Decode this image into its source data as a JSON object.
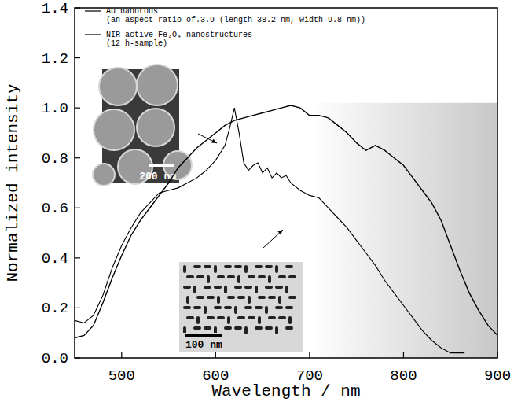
{
  "chart_data": {
    "type": "line",
    "x_label": "Wavelength / nm",
    "y_label": "Normalized intensity",
    "xlim": [
      450,
      900
    ],
    "xticks": [
      500,
      600,
      700,
      800,
      900
    ],
    "ylim": [
      0,
      1.4
    ],
    "yticks": [
      {
        "value": 0,
        "label": "0.0"
      },
      {
        "value": 0.2,
        "label": "0.2"
      },
      {
        "value": 0.4,
        "label": "0.4"
      },
      {
        "value": 0.6,
        "label": "0.6"
      },
      {
        "value": 0.8,
        "label": "0.8"
      },
      {
        "value": 1.0,
        "label": "1.0"
      },
      {
        "value": 1.2,
        "label": "1.2"
      },
      {
        "value": 1.4,
        "label": "1.4"
      }
    ],
    "grid": false,
    "legend": "top-left",
    "shaded_x": [
      700,
      900
    ],
    "shaded_top": 1.02,
    "insets": [
      {
        "scale_label": "200 nm"
      },
      {
        "scale_label": "100 nm"
      }
    ],
    "series": [
      {
        "name": "Au nanorods\n(an aspect ratio of.3.9 (length 38.2 nm, width 9.8 nm))",
        "color": "#000000",
        "line_style": "solid",
        "x": [
          450,
          460,
          470,
          480,
          490,
          500,
          510,
          520,
          530,
          540,
          550,
          560,
          570,
          580,
          590,
          600,
          610,
          615,
          620,
          625,
          630,
          635,
          640,
          645,
          650,
          655,
          660,
          665,
          670,
          675,
          680,
          690,
          700,
          710,
          720,
          730,
          740,
          750,
          760,
          770,
          780,
          790,
          800,
          810,
          820,
          830,
          840,
          850,
          860,
          865
        ],
        "values": [
          0.15,
          0.14,
          0.17,
          0.25,
          0.36,
          0.45,
          0.52,
          0.58,
          0.62,
          0.66,
          0.67,
          0.68,
          0.7,
          0.72,
          0.75,
          0.79,
          0.85,
          0.92,
          1.0,
          0.9,
          0.78,
          0.75,
          0.77,
          0.78,
          0.74,
          0.76,
          0.72,
          0.74,
          0.72,
          0.73,
          0.7,
          0.67,
          0.65,
          0.64,
          0.6,
          0.56,
          0.52,
          0.47,
          0.42,
          0.37,
          0.31,
          0.26,
          0.21,
          0.16,
          0.11,
          0.07,
          0.04,
          0.02,
          0.02,
          0.02
        ]
      },
      {
        "name": "NIR-active Fe₃O₄ nanostructures\n(12 h-sample)",
        "color": "#000000",
        "line_style": "solid",
        "x": [
          450,
          460,
          470,
          480,
          490,
          500,
          510,
          520,
          530,
          540,
          550,
          560,
          570,
          580,
          590,
          600,
          610,
          620,
          630,
          640,
          650,
          660,
          670,
          680,
          690,
          700,
          710,
          720,
          730,
          740,
          750,
          760,
          770,
          780,
          790,
          800,
          810,
          820,
          830,
          840,
          850,
          860,
          870,
          880,
          890,
          900
        ],
        "values": [
          0.08,
          0.09,
          0.13,
          0.22,
          0.32,
          0.41,
          0.49,
          0.55,
          0.6,
          0.65,
          0.7,
          0.76,
          0.8,
          0.84,
          0.87,
          0.9,
          0.93,
          0.95,
          0.96,
          0.97,
          0.98,
          0.99,
          1.0,
          1.01,
          1.0,
          0.97,
          0.97,
          0.96,
          0.93,
          0.9,
          0.86,
          0.83,
          0.85,
          0.83,
          0.8,
          0.77,
          0.72,
          0.67,
          0.62,
          0.55,
          0.45,
          0.35,
          0.26,
          0.19,
          0.13,
          0.09
        ]
      }
    ]
  }
}
